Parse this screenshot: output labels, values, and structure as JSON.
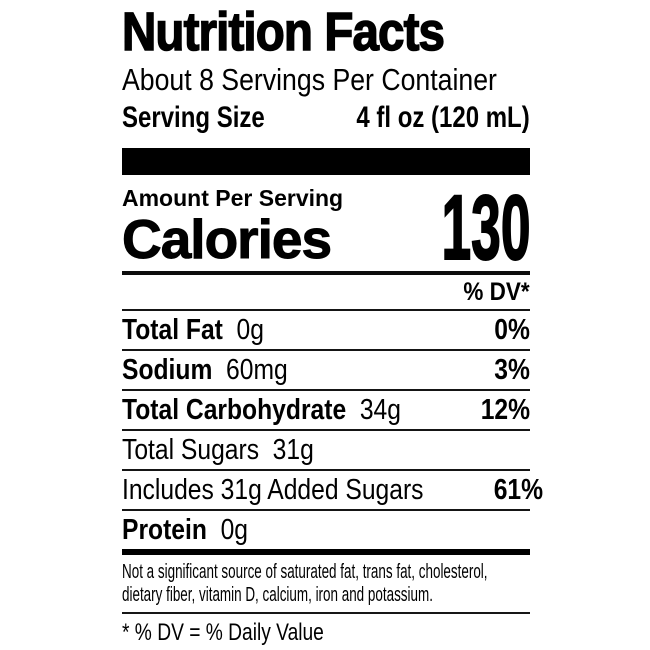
{
  "label": {
    "title": "Nutrition Facts",
    "servings_per_container": "About 8 Servings Per Container",
    "serving_size_label": "Serving Size",
    "serving_size_value": "4 fl oz (120 mL)",
    "amount_per_serving": "Amount Per Serving",
    "calories_label": "Calories",
    "calories_value": "130",
    "dv_header": "% DV*",
    "rows": [
      {
        "name": "Total Fat",
        "amount": "0g",
        "dv": "0%"
      },
      {
        "name": "Sodium",
        "amount": "60mg",
        "dv": "3%"
      },
      {
        "name": "Total Carbohydrate",
        "amount": "34g",
        "dv": "12%"
      },
      {
        "name": "Total Sugars",
        "amount": "31g",
        "dv": ""
      },
      {
        "name": "Includes 31g Added Sugars",
        "amount": "",
        "dv": "61%"
      },
      {
        "name": "Protein",
        "amount": "0g",
        "dv": ""
      }
    ],
    "footnote": "Not a significant source of saturated fat, trans fat, cholesterol, dietary fiber, vitamin D, calcium, iron and potassium.",
    "dv_note": "* % DV = % Daily Value",
    "colors": {
      "text": "#000000",
      "rule": "#151515",
      "background": "#ffffff"
    }
  }
}
